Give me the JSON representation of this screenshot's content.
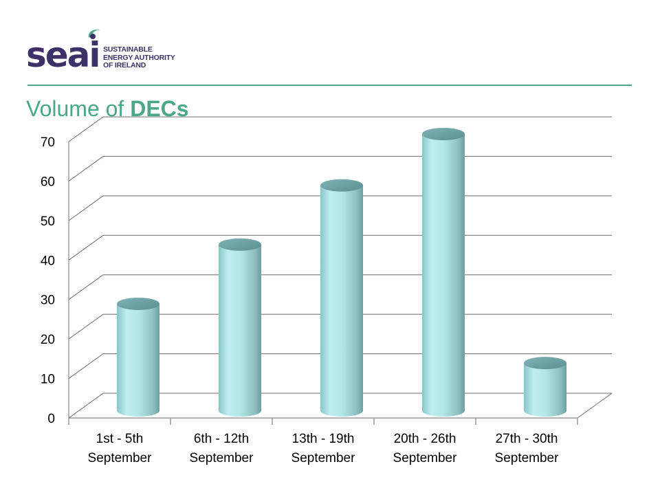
{
  "logo": {
    "wordmark": "seai",
    "lines": [
      "SUSTAINABLE",
      "ENERGY AUTHORITY",
      "OF IRELAND"
    ],
    "colors": {
      "wordmark": "#3d3168",
      "swoosh": "#4aa889"
    }
  },
  "title": {
    "prefix": "Volume of ",
    "emphasis": "DECs"
  },
  "colors": {
    "accent": "#4aa889",
    "bar": "#a9dfe1",
    "grid": "#6b6b6b"
  },
  "chart_data": {
    "type": "bar",
    "style": "3d-cylinder",
    "categories": [
      [
        "1st - 5th",
        "September"
      ],
      [
        "6th - 12th",
        "September"
      ],
      [
        "13th - 19th",
        "September"
      ],
      [
        "20th - 26th",
        "September"
      ],
      [
        "27th - 30th",
        "September"
      ]
    ],
    "values": [
      27,
      42,
      57,
      70,
      12
    ],
    "ylim": [
      0,
      70
    ],
    "yticks": [
      0,
      10,
      20,
      30,
      40,
      50,
      60,
      70
    ],
    "grid": true,
    "legend": "none"
  }
}
